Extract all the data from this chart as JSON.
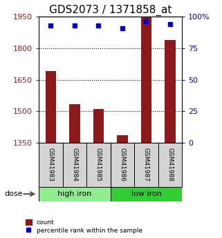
{
  "title": "GDS2073 / 1371858_at",
  "categories": [
    "GSM41983",
    "GSM41984",
    "GSM41985",
    "GSM41986",
    "GSM41987",
    "GSM41988"
  ],
  "bar_values": [
    1690,
    1535,
    1510,
    1385,
    1950,
    1840
  ],
  "percentile_values": [
    93,
    93,
    93,
    91,
    96,
    94
  ],
  "ymin": 1350,
  "ymax": 1950,
  "yticks": [
    1350,
    1500,
    1650,
    1800,
    1950
  ],
  "y2min": 0,
  "y2max": 100,
  "y2ticks": [
    0,
    25,
    50,
    75,
    100
  ],
  "bar_color": "#8B1A1A",
  "dot_color": "#0000CD",
  "groups": [
    {
      "label": "high iron",
      "start": 0,
      "end": 3,
      "color": "#90EE90"
    },
    {
      "label": "low iron",
      "start": 3,
      "end": 6,
      "color": "#32CD32"
    }
  ],
  "dose_label": "dose",
  "legend_count": "count",
  "legend_percentile": "percentile rank within the sample",
  "bar_label_color": "#8B1A1A",
  "pct_label_color": "#0000CD",
  "title_fontsize": 11,
  "tick_fontsize": 8,
  "label_fontsize": 7.5,
  "cat_fontsize": 6.5,
  "group_fontsize": 8
}
